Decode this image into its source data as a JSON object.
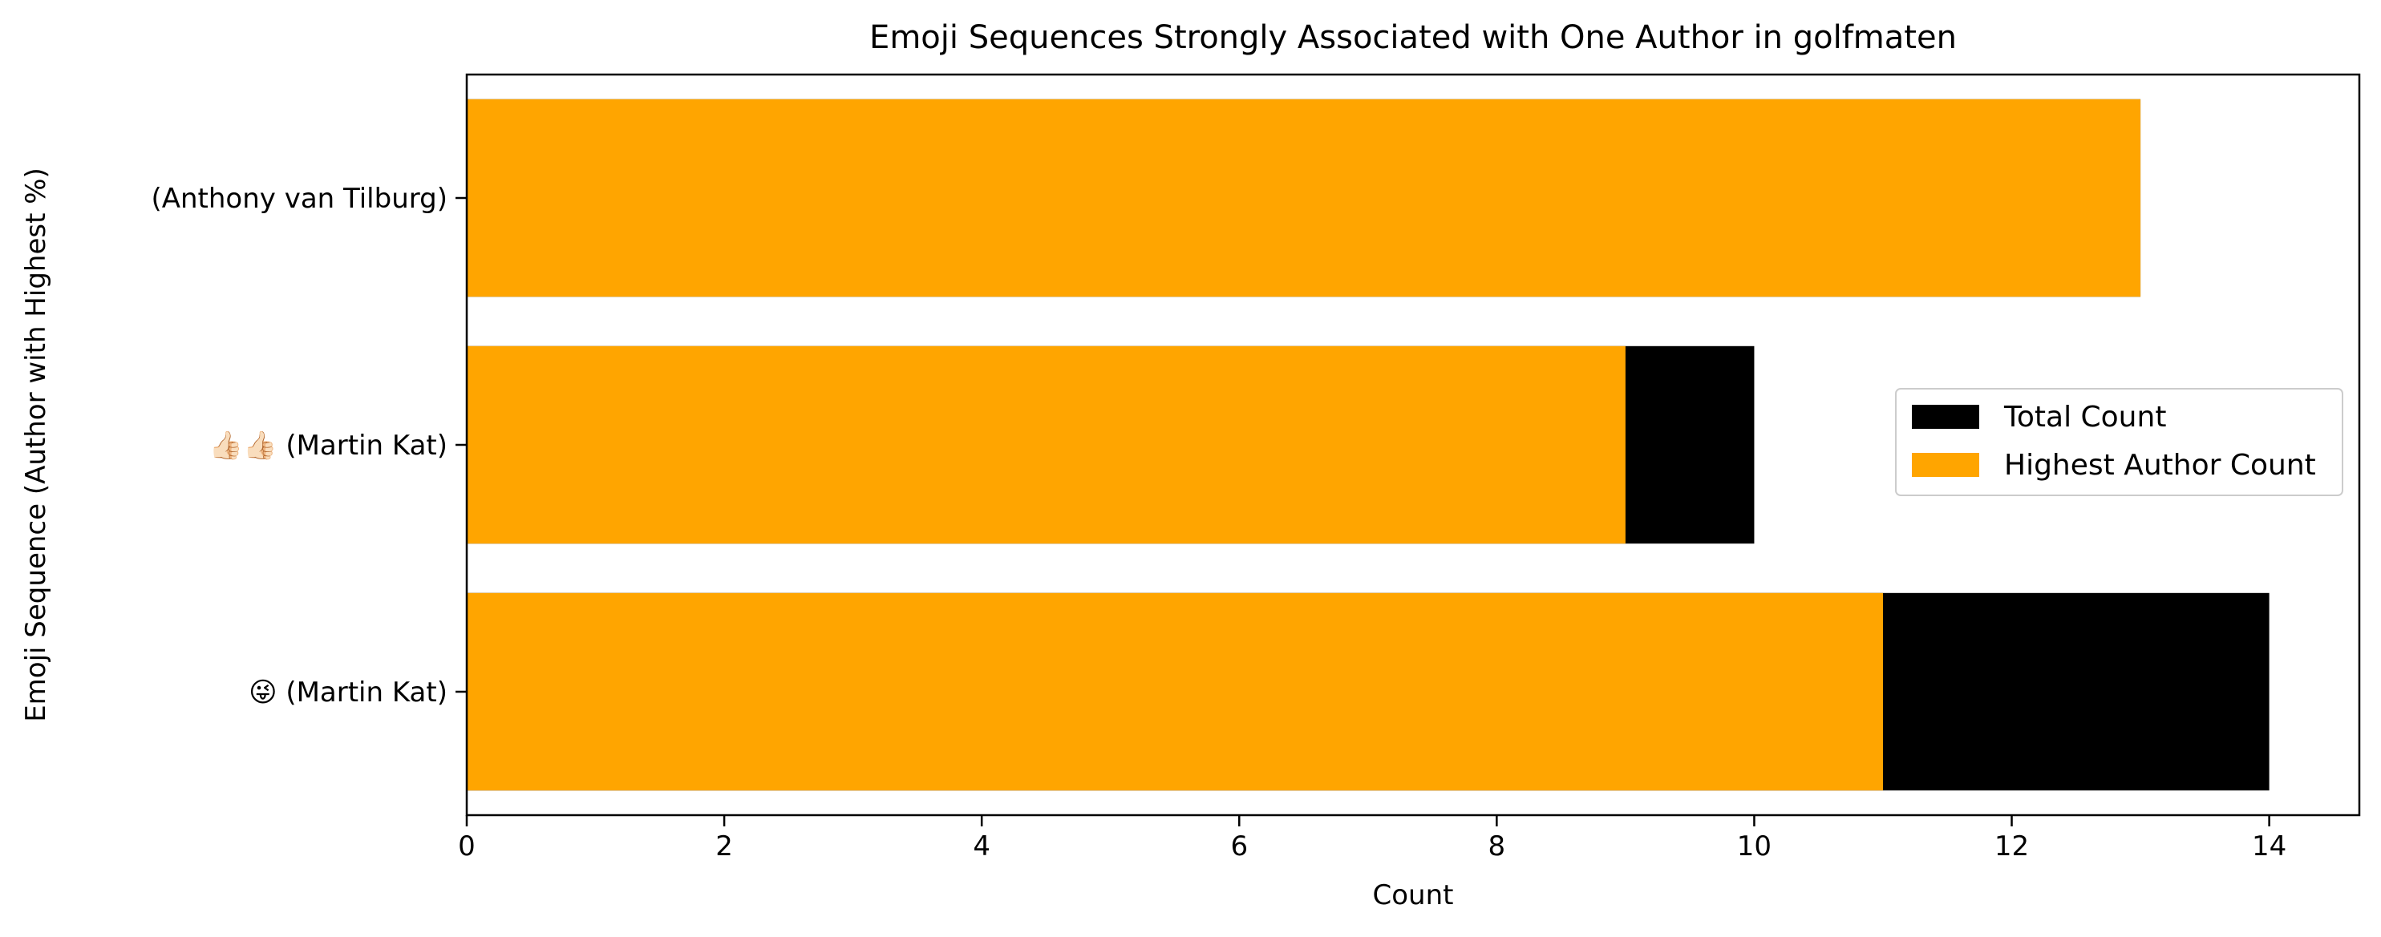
{
  "chart_data": {
    "type": "bar",
    "orientation": "horizontal",
    "title": "Emoji Sequences Strongly Associated with One Author in golfmaten",
    "xlabel": "Count",
    "ylabel": "Emoji Sequence (Author with Highest %)",
    "xlim": [
      0,
      14.7
    ],
    "xticks": [
      0,
      2,
      4,
      6,
      8,
      10,
      12,
      14
    ],
    "grid": false,
    "legend_position": "center-right",
    "categories": [
      "😜 (Martin Kat)",
      "👍🏻👍🏻 (Martin Kat)",
      " (Anthony van Tilburg)"
    ],
    "series": [
      {
        "name": "Total Count",
        "color": "#000000",
        "values": [
          14,
          10,
          13
        ]
      },
      {
        "name": "Highest Author Count",
        "color": "#ffa500",
        "values": [
          11,
          9,
          13
        ]
      }
    ]
  }
}
